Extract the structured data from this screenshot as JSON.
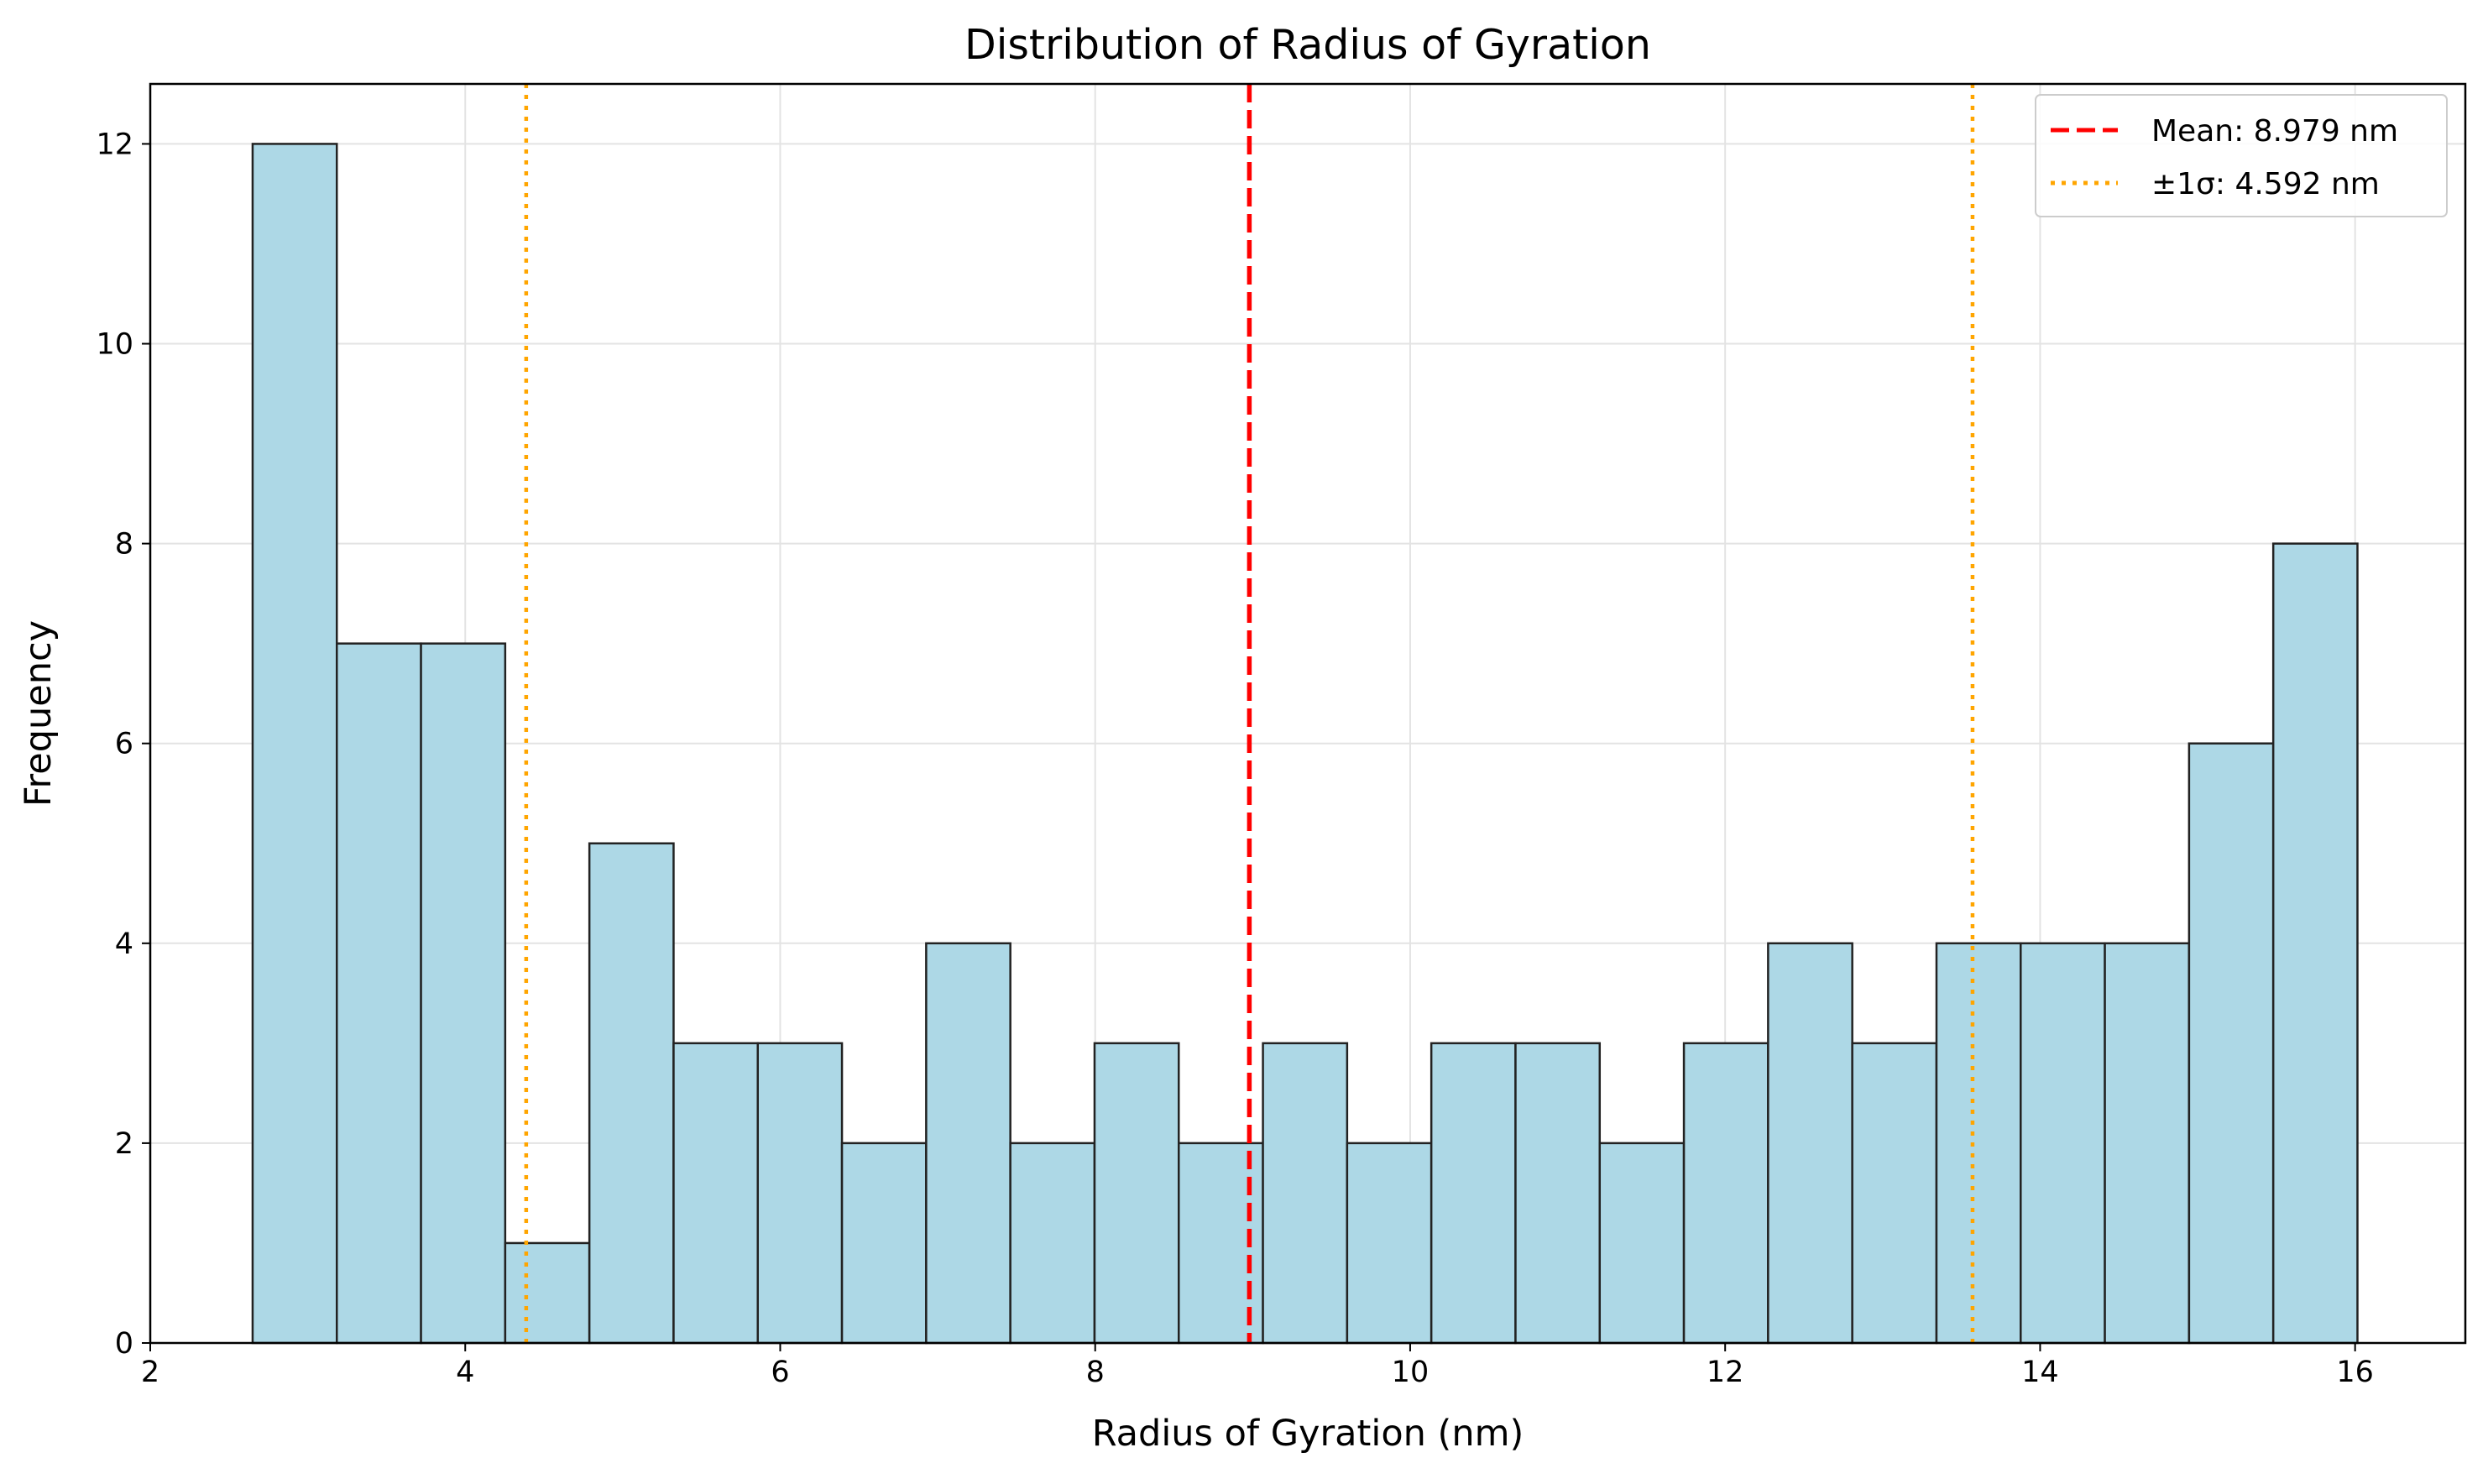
{
  "chart_data": {
    "type": "bar",
    "title": "Distribution of Radius of Gyration",
    "xlabel": "Radius of Gyration (nm)",
    "ylabel": "Frequency",
    "xlim": [
      2,
      16.7
    ],
    "ylim": [
      0,
      12.6
    ],
    "xticks": [
      2,
      4,
      6,
      8,
      10,
      12,
      14,
      16
    ],
    "yticks": [
      0,
      2,
      4,
      6,
      8,
      10,
      12
    ],
    "grid": true,
    "legend_position": "top-right",
    "bin_start": 2.65,
    "bin_width": 0.5346,
    "values": [
      12,
      7,
      7,
      1,
      5,
      3,
      3,
      2,
      4,
      2,
      3,
      2,
      3,
      2,
      3,
      3,
      2,
      3,
      4,
      3,
      4,
      4,
      4,
      6,
      8
    ],
    "bar_color": "#add8e6",
    "bar_edge_color": "#222222",
    "mean_line": {
      "x": 8.979,
      "label": "Mean: 8.979 nm",
      "color": "#ff0000",
      "style": "dashed"
    },
    "sigma_lines": {
      "x": [
        4.387,
        13.571
      ],
      "label": "±1σ: 4.592 nm",
      "color": "#ffa500",
      "style": "dotted"
    }
  }
}
